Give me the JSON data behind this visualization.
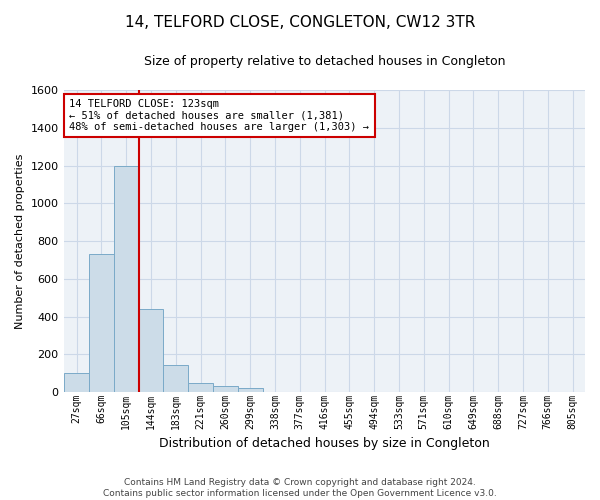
{
  "title": "14, TELFORD CLOSE, CONGLETON, CW12 3TR",
  "subtitle": "Size of property relative to detached houses in Congleton",
  "xlabel": "Distribution of detached houses by size in Congleton",
  "ylabel": "Number of detached properties",
  "categories": [
    "27sqm",
    "66sqm",
    "105sqm",
    "144sqm",
    "183sqm",
    "221sqm",
    "260sqm",
    "299sqm",
    "338sqm",
    "377sqm",
    "416sqm",
    "455sqm",
    "494sqm",
    "533sqm",
    "571sqm",
    "610sqm",
    "649sqm",
    "688sqm",
    "727sqm",
    "766sqm",
    "805sqm"
  ],
  "bar_heights": [
    100,
    730,
    1200,
    440,
    145,
    50,
    30,
    20,
    0,
    0,
    0,
    0,
    0,
    0,
    0,
    0,
    0,
    0,
    0,
    0,
    0
  ],
  "bar_color": "#ccdce8",
  "bar_edgecolor": "#7aaac8",
  "ylim": [
    0,
    1600
  ],
  "yticks": [
    0,
    200,
    400,
    600,
    800,
    1000,
    1200,
    1400,
    1600
  ],
  "vline_x": 2.5,
  "vline_color": "#cc0000",
  "annotation_text": "14 TELFORD CLOSE: 123sqm\n← 51% of detached houses are smaller (1,381)\n48% of semi-detached houses are larger (1,303) →",
  "annotation_box_color": "#ffffff",
  "annotation_box_edgecolor": "#cc0000",
  "footer_text": "Contains HM Land Registry data © Crown copyright and database right 2024.\nContains public sector information licensed under the Open Government Licence v3.0.",
  "grid_color": "#ccd8e8",
  "background_color": "#edf2f7",
  "title_fontsize": 11,
  "subtitle_fontsize": 9,
  "xlabel_fontsize": 9,
  "ylabel_fontsize": 8,
  "tick_fontsize": 8,
  "xtick_fontsize": 7,
  "annotation_fontsize": 7.5,
  "footer_fontsize": 6.5
}
